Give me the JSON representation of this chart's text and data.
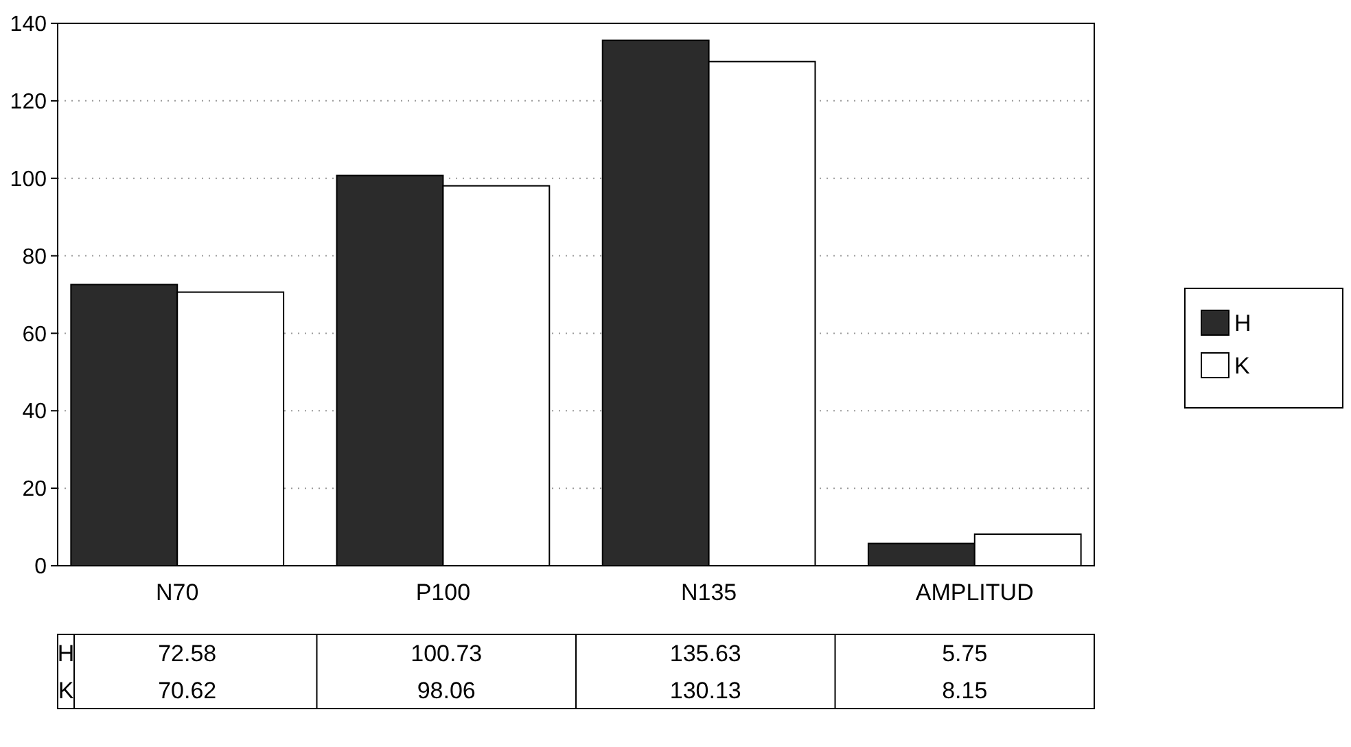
{
  "chart_data": {
    "type": "bar",
    "categories": [
      "N70",
      "P100",
      "N135",
      "AMPLITUD"
    ],
    "series": [
      {
        "name": "H",
        "color": "#2b2b2b",
        "values": [
          72.58,
          100.73,
          135.63,
          5.75
        ]
      },
      {
        "name": "K",
        "color": "#ffffff",
        "values": [
          70.62,
          98.06,
          130.13,
          8.15
        ]
      }
    ],
    "ylim": [
      0,
      140
    ],
    "yticks": [
      0,
      20,
      40,
      60,
      80,
      100,
      120,
      140
    ],
    "grid": "y",
    "legend": "right",
    "data_labels": true
  }
}
